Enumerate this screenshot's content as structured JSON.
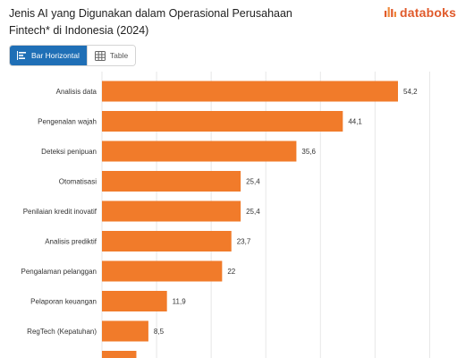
{
  "header": {
    "title": "Jenis AI yang Digunakan dalam Operasional Perusahaan Fintech* di Indonesia (2024)",
    "logo_text": "databoks",
    "logo_icon": "databoks-logo-icon"
  },
  "toggle": {
    "bar_label": "Bar Horizontal",
    "table_label": "Table"
  },
  "colors": {
    "bar": "#F17B2A",
    "active_button": "#1F6FB6",
    "logo": "#E05A2B"
  },
  "chart_data": {
    "type": "bar",
    "orientation": "horizontal",
    "categories": [
      "Analisis data",
      "Pengenalan wajah",
      "Deteksi penipuan",
      "Otomatisasi",
      "Penilaian kredit inovatif",
      "Analisis prediktif",
      "Pengalaman pelanggan",
      "Pelaporan keuangan",
      "RegTech (Kepatuhan)"
    ],
    "values": [
      54.2,
      44.1,
      35.6,
      25.4,
      25.4,
      23.7,
      22,
      11.9,
      8.5
    ],
    "value_labels": [
      "54,2",
      "44,1",
      "35,6",
      "25,4",
      "25,4",
      "23,7",
      "22",
      "11,9",
      "8,5"
    ],
    "xlim": [
      0,
      60
    ],
    "grid": true
  }
}
